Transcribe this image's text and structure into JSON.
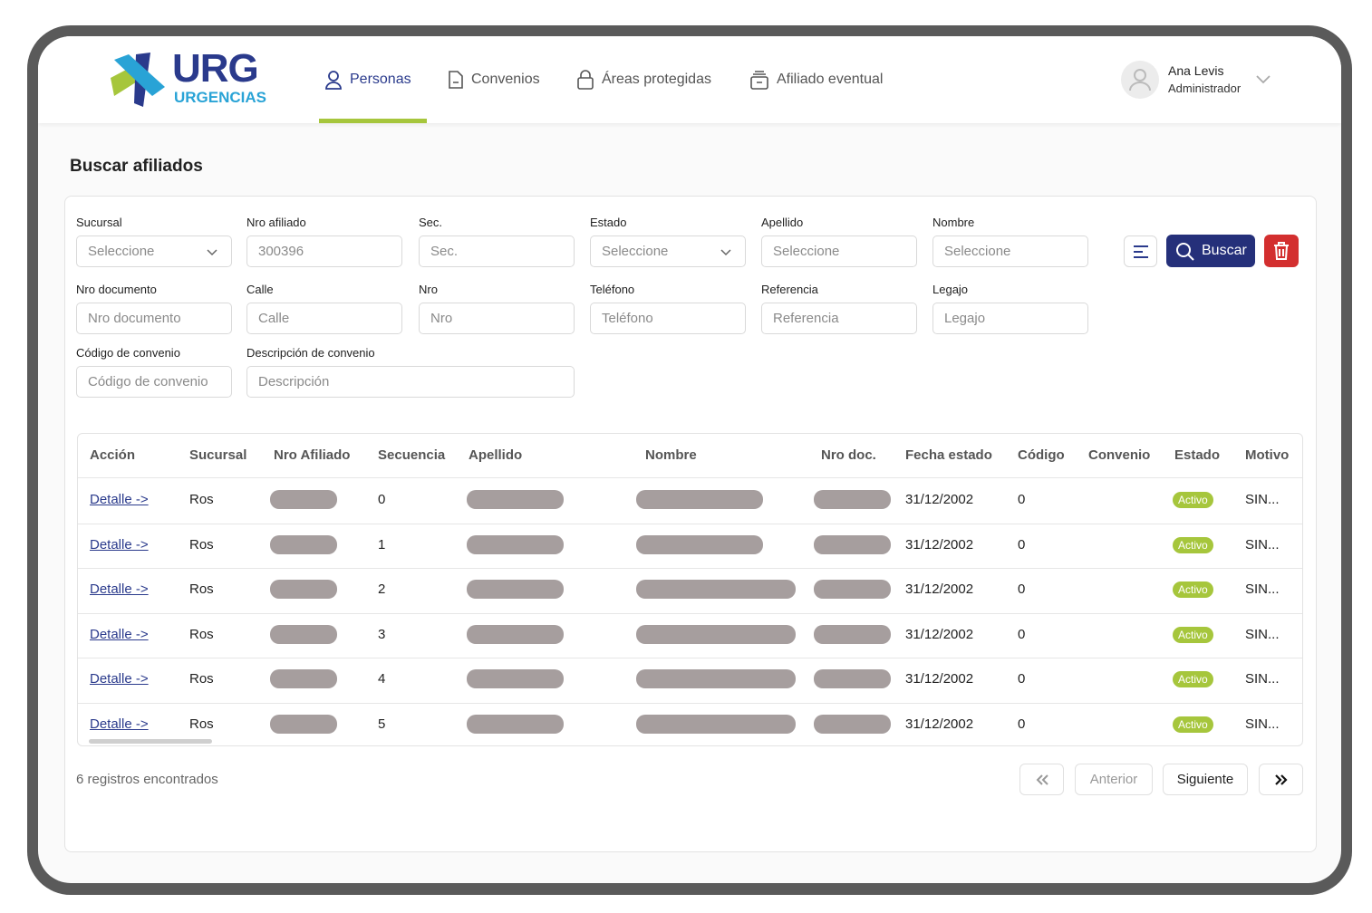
{
  "header": {
    "logo": {
      "title": "URG",
      "subtitle": "URGENCIAS"
    },
    "nav": [
      "Personas",
      "Convenios",
      "Áreas protegidas",
      "Afiliado eventual"
    ],
    "user": {
      "name": "Ana Levis",
      "role": "Administrador"
    }
  },
  "page_title": "Buscar afiliados",
  "filters": [
    {
      "label": "Sucursal",
      "text": "Seleccione",
      "select": true
    },
    {
      "label": "Nro afiliado",
      "text": "300396",
      "select": false
    },
    {
      "label": "Sec.",
      "text": "Sec.",
      "select": false
    },
    {
      "label": "Estado",
      "text": "Seleccione",
      "select": true
    },
    {
      "label": "Apellido",
      "text": "Seleccione",
      "select": false
    },
    {
      "label": "Nombre",
      "text": "Seleccione",
      "select": false
    },
    {
      "label": "Nro documento",
      "text": "Nro documento",
      "select": false
    },
    {
      "label": "Calle",
      "text": "Calle",
      "select": false
    },
    {
      "label": "Nro",
      "text": "Nro",
      "select": false
    },
    {
      "label": "Teléfono",
      "text": "Teléfono",
      "select": false
    },
    {
      "label": "Referencia",
      "text": "Referencia",
      "select": false
    },
    {
      "label": "Legajo",
      "text": "Legajo",
      "select": false
    },
    {
      "label": "Código de convenio",
      "text": "Código de convenio",
      "select": false
    },
    {
      "label": "Descripción de convenio",
      "text": "Descripción",
      "select": false
    }
  ],
  "search_button": "Buscar",
  "table": {
    "columns": [
      "Acción",
      "Sucursal",
      "Nro Afiliado",
      "Secuencia",
      "Apellido",
      "Nombre",
      "Nro doc.",
      "Fecha estado",
      "Código",
      "Convenio",
      "Estado",
      "Motivo"
    ],
    "rows": [
      {
        "accion": "Detalle ->",
        "sucursal": "Ros",
        "secuencia": 0,
        "fecha_estado": "31/12/2002",
        "codigo": 0,
        "estado": "Activo",
        "motivo": "SIN..."
      },
      {
        "accion": "Detalle ->",
        "sucursal": "Ros",
        "secuencia": 1,
        "fecha_estado": "31/12/2002",
        "codigo": 0,
        "estado": "Activo",
        "motivo": "SIN..."
      },
      {
        "accion": "Detalle ->",
        "sucursal": "Ros",
        "secuencia": 2,
        "fecha_estado": "31/12/2002",
        "codigo": 0,
        "estado": "Activo",
        "motivo": "SIN..."
      },
      {
        "accion": "Detalle ->",
        "sucursal": "Ros",
        "secuencia": 3,
        "fecha_estado": "31/12/2002",
        "codigo": 0,
        "estado": "Activo",
        "motivo": "SIN..."
      },
      {
        "accion": "Detalle ->",
        "sucursal": "Ros",
        "secuencia": 4,
        "fecha_estado": "31/12/2002",
        "codigo": 0,
        "estado": "Activo",
        "motivo": "SIN..."
      },
      {
        "accion": "Detalle ->",
        "sucursal": "Ros",
        "secuencia": 5,
        "fecha_estado": "31/12/2002",
        "codigo": 0,
        "estado": "Activo",
        "motivo": "SIN..."
      }
    ]
  },
  "footer": {
    "count": "6 registros encontrados",
    "previous": "Anterior",
    "next": "Siguiente"
  }
}
